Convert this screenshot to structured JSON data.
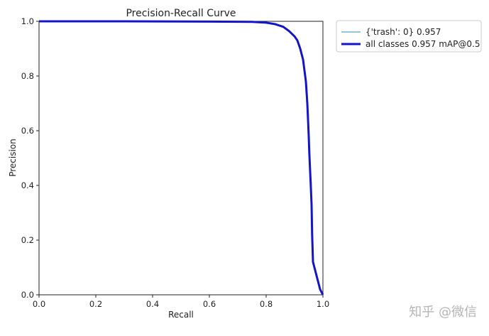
{
  "chart_data": {
    "type": "line",
    "title": "Precision-Recall Curve",
    "xlabel": "Recall",
    "ylabel": "Precision",
    "xlim": [
      0.0,
      1.0
    ],
    "ylim": [
      0.0,
      1.0
    ],
    "xticks": [
      "0.0",
      "0.2",
      "0.4",
      "0.6",
      "0.8",
      "1.0"
    ],
    "yticks": [
      "0.0",
      "0.2",
      "0.4",
      "0.6",
      "0.8",
      "1.0"
    ],
    "grid": false,
    "legend_position": "outside-top-right",
    "series": [
      {
        "name": "{'trash': 0} 0.957",
        "color": "#5aa0c8",
        "x": [
          0.0,
          0.3,
          0.6,
          0.75,
          0.8,
          0.83,
          0.86,
          0.88,
          0.9,
          0.91,
          0.92,
          0.93,
          0.935,
          0.94,
          0.945,
          0.948,
          0.95,
          0.952,
          0.955,
          0.958,
          0.96,
          0.962,
          0.965,
          0.97,
          0.98,
          0.99,
          1.0
        ],
        "y": [
          1.0,
          1.0,
          0.999,
          0.998,
          0.995,
          0.99,
          0.98,
          0.965,
          0.945,
          0.93,
          0.9,
          0.86,
          0.82,
          0.78,
          0.7,
          0.63,
          0.58,
          0.52,
          0.45,
          0.38,
          0.33,
          0.22,
          0.12,
          0.1,
          0.06,
          0.02,
          0.0
        ]
      },
      {
        "name": "all classes 0.957 mAP@0.5",
        "color": "#1414c8",
        "x": [
          0.0,
          0.3,
          0.6,
          0.75,
          0.8,
          0.83,
          0.86,
          0.88,
          0.9,
          0.91,
          0.92,
          0.93,
          0.935,
          0.94,
          0.945,
          0.948,
          0.95,
          0.952,
          0.955,
          0.958,
          0.96,
          0.962,
          0.965,
          0.97,
          0.98,
          0.99,
          1.0
        ],
        "y": [
          1.0,
          1.0,
          0.999,
          0.998,
          0.995,
          0.99,
          0.98,
          0.965,
          0.945,
          0.93,
          0.9,
          0.86,
          0.82,
          0.78,
          0.7,
          0.63,
          0.58,
          0.52,
          0.45,
          0.38,
          0.33,
          0.22,
          0.12,
          0.1,
          0.06,
          0.02,
          0.0
        ]
      }
    ]
  },
  "watermark": "知乎 @微信"
}
